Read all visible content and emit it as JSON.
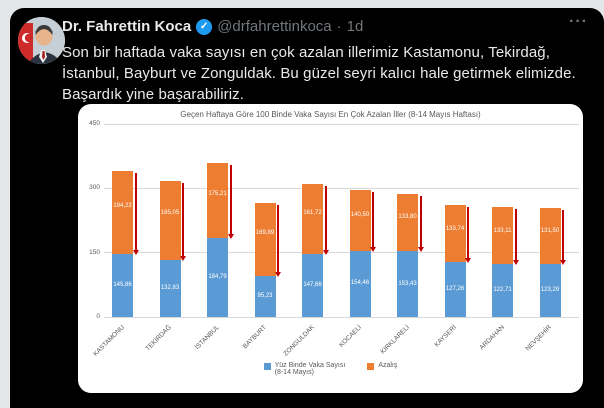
{
  "tweet": {
    "author": "Dr. Fahrettin Koca",
    "handle": "@drfahrettinkoca",
    "separator": "·",
    "timestamp": "1d",
    "more_label": "···",
    "body": "Son bir haftada vaka sayısı en çok azalan illerimiz Kastamonu, Tekirdağ, İstanbul, Bayburt ve Zonguldak. Bu güzel seyri kalıcı hale getirmek elimizde. Başardık yine başarabiliriz."
  },
  "chart_data": {
    "type": "bar",
    "stacked": true,
    "title": "Geçen Haftaya Göre 100 Binde Vaka Sayısı En Çok Azalan İller (8-14 Mayıs Haftası)",
    "categories": [
      "KASTAMONU",
      "TEKİRDAĞ",
      "İSTANBUL",
      "BAYBURT",
      "ZONGULDAK",
      "KOCAELİ",
      "KIRKLARELİ",
      "KAYSERİ",
      "ARDAHAN",
      "NEVŞEHİR"
    ],
    "series": [
      {
        "name": "Yüz Binde Vaka Sayısı (8-14 Mayıs)",
        "color": "#5B9BD5",
        "values": [
          145.86,
          132.83,
          184.79,
          95.23,
          147.66,
          154.46,
          153.43,
          127.26,
          122.71,
          123.29
        ],
        "labels": [
          "145,86",
          "132,83",
          "184,79",
          "95,23",
          "147,66",
          "154,46",
          "153,43",
          "127,26",
          "122,71",
          "123,29"
        ]
      },
      {
        "name": "Azalış",
        "color": "#ED7D31",
        "values": [
          194.22,
          185.05,
          175.21,
          169.89,
          161.72,
          140.5,
          133.8,
          133.74,
          133.11,
          131.5
        ],
        "labels": [
          "194,22",
          "185,05",
          "175,21",
          "169,89",
          "161,72",
          "140,50",
          "133,80",
          "133,74",
          "133,11",
          "131,50"
        ]
      }
    ],
    "y_ticks": [
      0,
      150,
      300,
      450
    ],
    "ylim": [
      0,
      450
    ],
    "grid": true,
    "legend_position": "bottom",
    "arrow_color": "#C00000",
    "legend": [
      {
        "label_line1": "Yüz Binde Vaka Sayısı",
        "label_line2": "(8-14 Mayıs)",
        "color": "#5B9BD5"
      },
      {
        "label_line1": "Azalış",
        "label_line2": "",
        "color": "#ED7D31"
      }
    ]
  }
}
